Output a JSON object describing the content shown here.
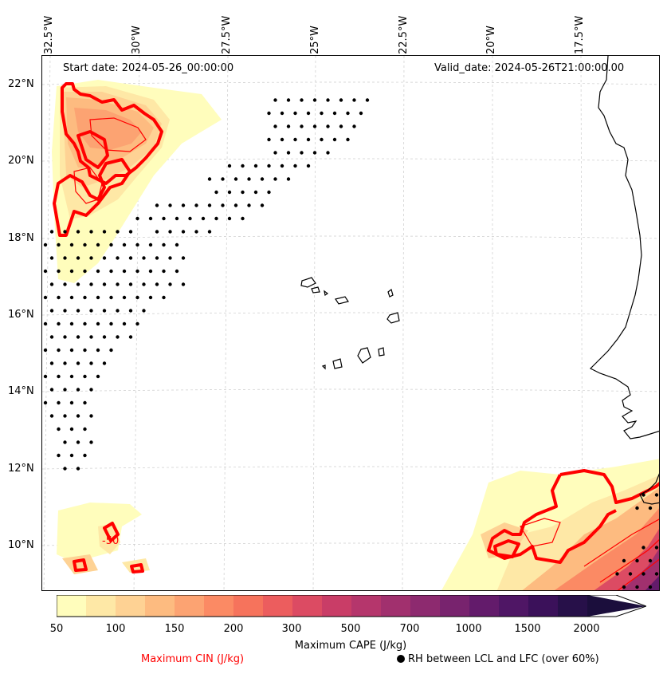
{
  "map": {
    "start_date": "Start date: 2024-05-26_00:00:00",
    "valid_date": "Valid_date: 2024-05-26T21:00:00.00",
    "lon_labels": [
      "32.5°W",
      "30°W",
      "27.5°W",
      "25°W",
      "22.5°W",
      "20°W",
      "17.5°W"
    ],
    "lat_labels": [
      "22°N",
      "20°N",
      "18°N",
      "16°N",
      "14°N",
      "12°N",
      "10°N"
    ],
    "cin_contour_label": "-50"
  },
  "colorbar": {
    "colors": [
      "#fffdbc",
      "#fee8a6",
      "#fed294",
      "#fdbb80",
      "#fca372",
      "#fb8a64",
      "#f6735c",
      "#ec5d5e",
      "#dc4b63",
      "#c93d67",
      "#b5366c",
      "#a1306e",
      "#8d2a6f",
      "#78236e",
      "#631b6b",
      "#4f1665",
      "#3b115a",
      "#271049",
      "#1b0e3c"
    ],
    "tick_labels": [
      "50",
      "100",
      "150",
      "200",
      "300",
      "500",
      "700",
      "1000",
      "1500",
      "2000"
    ],
    "label": "Maximum CAPE (J/kg)"
  },
  "legend": {
    "cin_label": "Maximum CIN (J/kg)",
    "rh_label": "RH between LCL and LFC (over 60%)"
  }
}
